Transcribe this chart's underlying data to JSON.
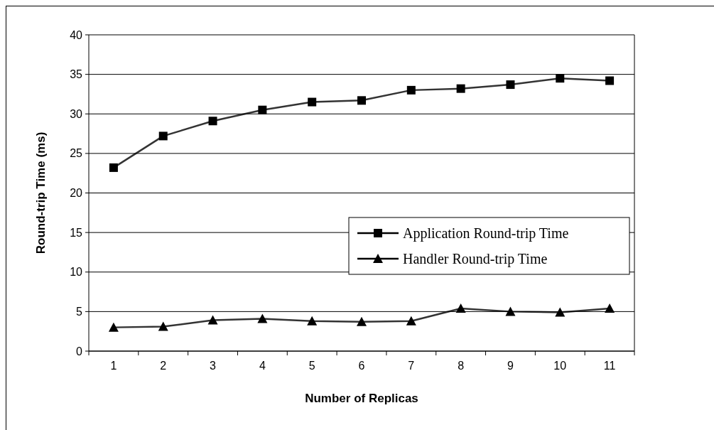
{
  "chart_data": {
    "type": "line",
    "xlabel": "Number of Replicas",
    "ylabel": "Round-trip Time (ms)",
    "categories": [
      "1",
      "2",
      "3",
      "4",
      "5",
      "6",
      "7",
      "8",
      "9",
      "10",
      "11"
    ],
    "series": [
      {
        "name": "Application Round-trip Time",
        "color": "#000000",
        "marker": "square",
        "values": [
          23.2,
          27.2,
          29.1,
          30.5,
          31.5,
          31.7,
          33.0,
          33.2,
          33.7,
          34.5,
          34.2
        ]
      },
      {
        "name": "Handler Round-trip Time",
        "color": "#000000",
        "marker": "triangle",
        "values": [
          3.0,
          3.1,
          3.9,
          4.1,
          3.8,
          3.7,
          3.8,
          5.4,
          5.0,
          4.9,
          5.4
        ]
      }
    ],
    "ylim": [
      0,
      40
    ],
    "yticks": [
      0,
      5,
      10,
      15,
      20,
      25,
      30,
      35,
      40
    ],
    "grid": "y",
    "legend": "right",
    "line_style": "solid"
  }
}
